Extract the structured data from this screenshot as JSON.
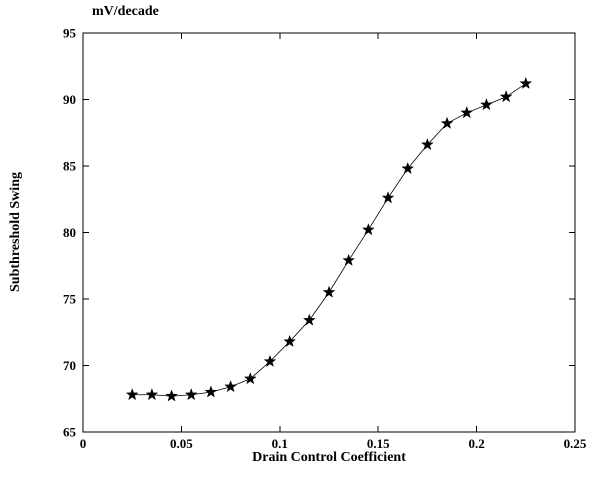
{
  "chart_data": {
    "type": "line",
    "title": "mV/decade",
    "xlabel": "Drain Control Coefficient",
    "ylabel": "Subthreshold Swing",
    "xlim": [
      0,
      0.25
    ],
    "ylim": [
      65,
      95
    ],
    "grid": false,
    "legend": "none",
    "marker": "filled-star",
    "line_color": "#000000",
    "marker_color": "#000000",
    "background_color": "#ffffff",
    "xticks": {
      "values": [
        0,
        0.05,
        0.1,
        0.15,
        0.2,
        0.25
      ],
      "labels": [
        "0",
        "0.05",
        "0.1",
        "0.15",
        "0.2",
        "0.25"
      ]
    },
    "yticks": {
      "values": [
        65,
        70,
        75,
        80,
        85,
        90,
        95
      ],
      "labels": [
        "65",
        "70",
        "75",
        "80",
        "85",
        "90",
        "95"
      ]
    },
    "series": [
      {
        "name": "subthreshold-swing",
        "x": [
          0.025,
          0.035,
          0.045,
          0.055,
          0.065,
          0.075,
          0.085,
          0.095,
          0.105,
          0.115,
          0.125,
          0.135,
          0.145,
          0.155,
          0.165,
          0.175,
          0.185,
          0.195,
          0.205,
          0.215,
          0.225
        ],
        "y": [
          67.8,
          67.8,
          67.7,
          67.8,
          68.0,
          68.4,
          69.0,
          70.3,
          71.8,
          73.4,
          75.5,
          77.9,
          80.2,
          82.6,
          84.8,
          86.6,
          88.2,
          89.0,
          89.6,
          90.2,
          91.2
        ]
      }
    ]
  }
}
